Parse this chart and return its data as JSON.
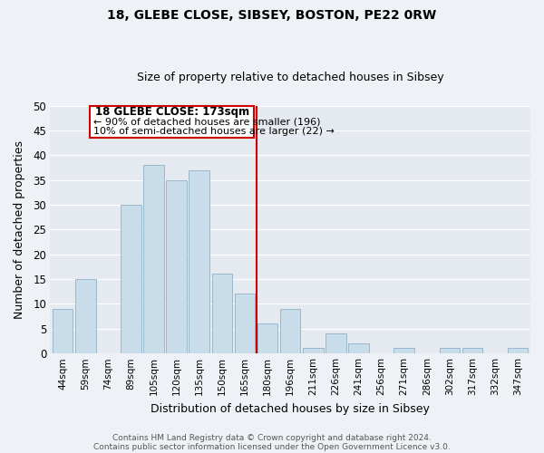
{
  "title1": "18, GLEBE CLOSE, SIBSEY, BOSTON, PE22 0RW",
  "title2": "Size of property relative to detached houses in Sibsey",
  "xlabel": "Distribution of detached houses by size in Sibsey",
  "ylabel": "Number of detached properties",
  "bar_labels": [
    "44sqm",
    "59sqm",
    "74sqm",
    "89sqm",
    "105sqm",
    "120sqm",
    "135sqm",
    "150sqm",
    "165sqm",
    "180sqm",
    "196sqm",
    "211sqm",
    "226sqm",
    "241sqm",
    "256sqm",
    "271sqm",
    "286sqm",
    "302sqm",
    "317sqm",
    "332sqm",
    "347sqm"
  ],
  "bar_values": [
    9,
    15,
    0,
    30,
    38,
    35,
    37,
    16,
    12,
    6,
    9,
    1,
    4,
    2,
    0,
    1,
    0,
    1,
    1,
    0,
    1
  ],
  "bar_color": "#c8dcea",
  "bar_edge_color": "#9ab8cc",
  "vline_color": "#cc0000",
  "ylim": [
    0,
    50
  ],
  "yticks": [
    0,
    5,
    10,
    15,
    20,
    25,
    30,
    35,
    40,
    45,
    50
  ],
  "annotation_line1": "18 GLEBE CLOSE: 173sqm",
  "annotation_line2": "← 90% of detached houses are smaller (196)",
  "annotation_line3": "10% of semi-detached houses are larger (22) →",
  "annotation_box_color": "#ffffff",
  "annotation_box_edge_color": "#cc0000",
  "footer1": "Contains HM Land Registry data © Crown copyright and database right 2024.",
  "footer2": "Contains public sector information licensed under the Open Government Licence v3.0.",
  "background_color": "#eef2f6",
  "plot_bg_color": "#e4eaf0",
  "grid_color": "#ffffff",
  "vline_x_index": 8
}
